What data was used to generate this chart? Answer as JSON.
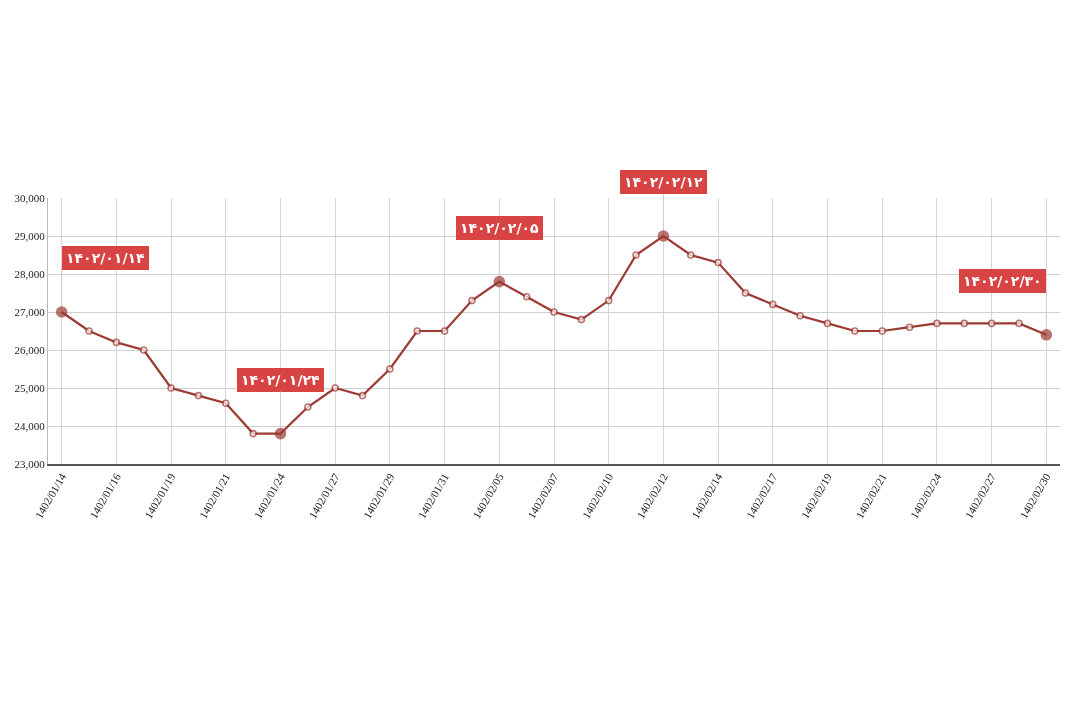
{
  "chart_data": {
    "type": "line",
    "categories": [
      "1402/01/14",
      null,
      "1402/01/16",
      null,
      "1402/01/19",
      null,
      "1402/01/21",
      null,
      "1402/01/24",
      null,
      "1402/01/27",
      null,
      "1402/01/29",
      null,
      "1402/01/31",
      null,
      "1402/02/05",
      null,
      "1402/02/07",
      null,
      "1402/02/10",
      null,
      "1402/02/12",
      null,
      "1402/02/14",
      null,
      "1402/02/17",
      null,
      "1402/02/19",
      null,
      "1402/02/21",
      null,
      "1402/02/24",
      null,
      "1402/02/27",
      null,
      "1402/02/30"
    ],
    "values": [
      27000,
      26500,
      26200,
      26000,
      25000,
      24800,
      24600,
      23800,
      23800,
      24500,
      25000,
      24800,
      25500,
      26500,
      26500,
      27300,
      27800,
      27400,
      27000,
      26800,
      27300,
      28500,
      29000,
      28500,
      28300,
      27500,
      27200,
      26900,
      26700,
      26500,
      26500,
      26600,
      26700,
      26700,
      26700,
      26700,
      26400
    ],
    "color": "#9c3a33",
    "ylim": [
      23000,
      30000
    ],
    "yticks": [
      {
        "value": 23000,
        "label": "23,000"
      },
      {
        "value": 24000,
        "label": "24,000"
      },
      {
        "value": 25000,
        "label": "25,000"
      },
      {
        "value": 26000,
        "label": "26,000"
      },
      {
        "value": 27000,
        "label": "27,000"
      },
      {
        "value": 28000,
        "label": "28,000"
      },
      {
        "value": 29000,
        "label": "29,000"
      },
      {
        "value": 30000,
        "label": "30,000"
      }
    ],
    "annotations": [
      {
        "text": "۱۴۰۲/۰۱/۱۴",
        "x": "1402/01/14",
        "y": 27000
      },
      {
        "text": "۱۴۰۲/۰۱/۲۴",
        "x": "1402/01/24",
        "y": 23800
      },
      {
        "text": "۱۴۰۲/۰۲/۰۵",
        "x": "1402/02/05",
        "y": 27800
      },
      {
        "text": "۱۴۰۲/۰۲/۱۲",
        "x": "1402/02/12",
        "y": 29000
      },
      {
        "text": "۱۴۰۲/۰۲/۳۰",
        "x": "1402/02/30",
        "y": 26400
      }
    ],
    "grid": true,
    "marker": "circle",
    "line_style": "solid"
  }
}
